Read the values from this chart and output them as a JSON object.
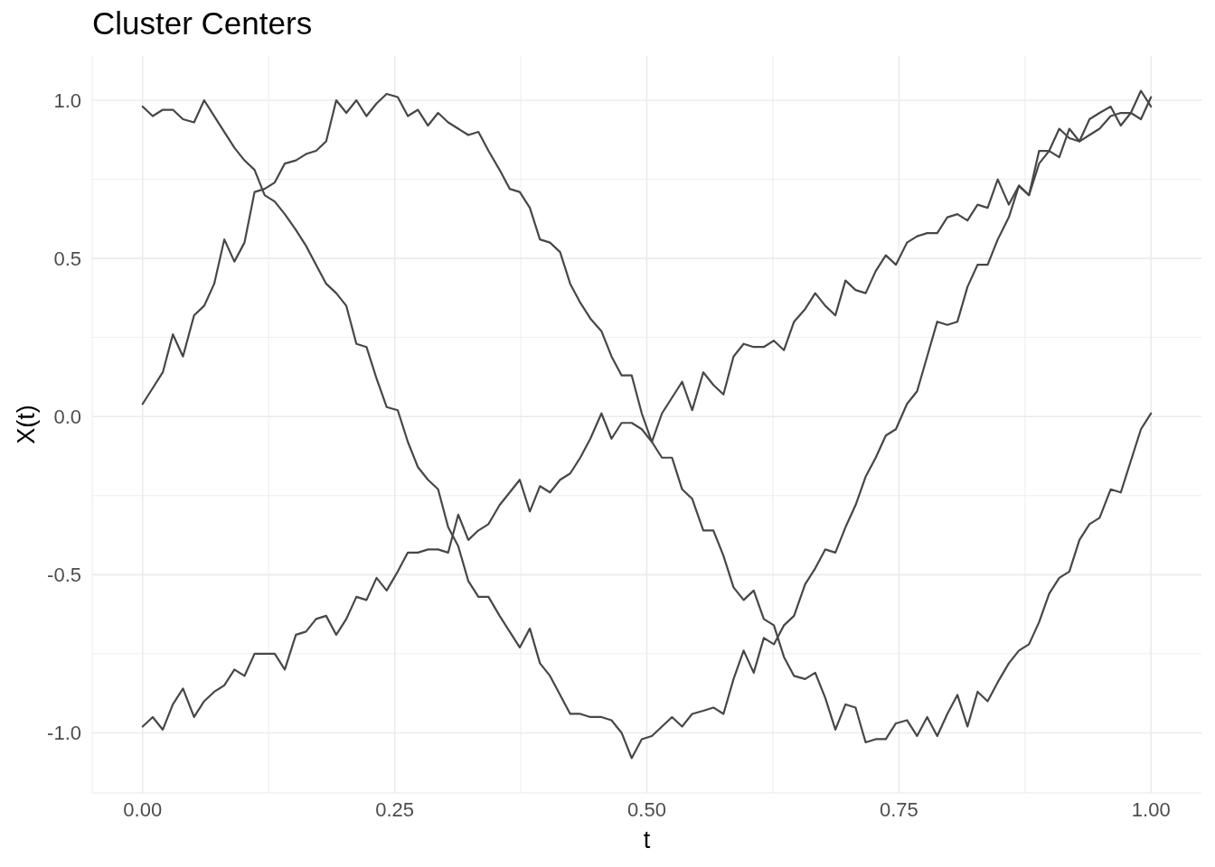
{
  "chart_data": {
    "type": "line",
    "title": "Cluster Centers",
    "xlabel": "t",
    "ylabel": "X(t)",
    "x": [
      0,
      0.01,
      0.02,
      0.03,
      0.04,
      0.051,
      0.061,
      0.071,
      0.081,
      0.091,
      0.101,
      0.111,
      0.121,
      0.131,
      0.141,
      0.152,
      0.162,
      0.172,
      0.182,
      0.192,
      0.202,
      0.212,
      0.222,
      0.232,
      0.242,
      0.253,
      0.263,
      0.273,
      0.283,
      0.293,
      0.303,
      0.313,
      0.323,
      0.333,
      0.343,
      0.354,
      0.364,
      0.374,
      0.384,
      0.394,
      0.404,
      0.414,
      0.424,
      0.434,
      0.444,
      0.455,
      0.465,
      0.475,
      0.485,
      0.495,
      0.505,
      0.515,
      0.525,
      0.535,
      0.545,
      0.556,
      0.566,
      0.576,
      0.586,
      0.596,
      0.606,
      0.616,
      0.626,
      0.636,
      0.646,
      0.657,
      0.667,
      0.677,
      0.687,
      0.697,
      0.707,
      0.717,
      0.727,
      0.737,
      0.747,
      0.758,
      0.768,
      0.778,
      0.788,
      0.798,
      0.808,
      0.818,
      0.828,
      0.838,
      0.848,
      0.859,
      0.869,
      0.879,
      0.889,
      0.899,
      0.909,
      0.919,
      0.929,
      0.939,
      0.949,
      0.96,
      0.97,
      0.98,
      0.99,
      1
    ],
    "series": [
      {
        "color": "#474747",
        "values": [
          0.98,
          0.95,
          0.97,
          0.97,
          0.94,
          0.93,
          1.0,
          0.95,
          0.9,
          0.85,
          0.81,
          0.78,
          0.7,
          0.68,
          0.64,
          0.59,
          0.54,
          0.48,
          0.42,
          0.39,
          0.35,
          0.23,
          0.22,
          0.12,
          0.03,
          0.02,
          -0.08,
          -0.16,
          -0.2,
          -0.23,
          -0.35,
          -0.41,
          -0.52,
          -0.57,
          -0.57,
          -0.63,
          -0.68,
          -0.73,
          -0.67,
          -0.78,
          -0.82,
          -0.88,
          -0.94,
          -0.94,
          -0.95,
          -0.95,
          -0.96,
          -1.0,
          -1.08,
          -1.02,
          -1.01,
          -0.98,
          -0.95,
          -0.98,
          -0.94,
          -0.93,
          -0.92,
          -0.94,
          -0.83,
          -0.74,
          -0.81,
          -0.7,
          -0.72,
          -0.66,
          -0.63,
          -0.53,
          -0.48,
          -0.42,
          -0.43,
          -0.35,
          -0.28,
          -0.19,
          -0.13,
          -0.06,
          -0.04,
          0.04,
          0.08,
          0.19,
          0.3,
          0.29,
          0.3,
          0.41,
          0.48,
          0.48,
          0.56,
          0.63,
          0.73,
          0.7,
          0.8,
          0.84,
          0.91,
          0.88,
          0.87,
          0.89,
          0.91,
          0.95,
          0.96,
          0.96,
          0.94,
          1.01
        ]
      },
      {
        "color": "#474747",
        "values": [
          0.04,
          0.09,
          0.14,
          0.26,
          0.19,
          0.32,
          0.35,
          0.42,
          0.56,
          0.49,
          0.55,
          0.71,
          0.72,
          0.74,
          0.8,
          0.81,
          0.83,
          0.84,
          0.87,
          1.0,
          0.96,
          1.0,
          0.95,
          0.99,
          1.02,
          1.01,
          0.95,
          0.97,
          0.92,
          0.96,
          0.93,
          0.91,
          0.89,
          0.9,
          0.84,
          0.78,
          0.72,
          0.71,
          0.66,
          0.56,
          0.55,
          0.52,
          0.42,
          0.36,
          0.31,
          0.27,
          0.19,
          0.13,
          0.13,
          0.01,
          -0.08,
          -0.13,
          -0.13,
          -0.23,
          -0.26,
          -0.36,
          -0.36,
          -0.44,
          -0.54,
          -0.58,
          -0.55,
          -0.64,
          -0.66,
          -0.76,
          -0.82,
          -0.83,
          -0.81,
          -0.89,
          -0.99,
          -0.91,
          -0.92,
          -1.03,
          -1.02,
          -1.02,
          -0.97,
          -0.96,
          -1.01,
          -0.95,
          -1.01,
          -0.94,
          -0.88,
          -0.98,
          -0.87,
          -0.9,
          -0.84,
          -0.78,
          -0.74,
          -0.72,
          -0.65,
          -0.56,
          -0.51,
          -0.49,
          -0.39,
          -0.34,
          -0.32,
          -0.23,
          -0.24,
          -0.14,
          -0.04,
          0.01
        ]
      },
      {
        "color": "#474747",
        "values": [
          -0.98,
          -0.95,
          -0.99,
          -0.91,
          -0.86,
          -0.95,
          -0.9,
          -0.87,
          -0.85,
          -0.8,
          -0.82,
          -0.75,
          -0.75,
          -0.75,
          -0.8,
          -0.69,
          -0.68,
          -0.64,
          -0.63,
          -0.69,
          -0.64,
          -0.57,
          -0.58,
          -0.51,
          -0.55,
          -0.49,
          -0.43,
          -0.43,
          -0.42,
          -0.42,
          -0.43,
          -0.31,
          -0.39,
          -0.36,
          -0.34,
          -0.28,
          -0.24,
          -0.2,
          -0.3,
          -0.22,
          -0.24,
          -0.2,
          -0.18,
          -0.13,
          -0.07,
          0.01,
          -0.07,
          -0.02,
          -0.02,
          -0.04,
          -0.08,
          0.01,
          0.06,
          0.11,
          0.02,
          0.14,
          0.1,
          0.07,
          0.19,
          0.23,
          0.22,
          0.22,
          0.24,
          0.21,
          0.3,
          0.34,
          0.39,
          0.35,
          0.32,
          0.43,
          0.4,
          0.39,
          0.46,
          0.51,
          0.48,
          0.55,
          0.57,
          0.58,
          0.58,
          0.63,
          0.64,
          0.62,
          0.67,
          0.66,
          0.75,
          0.67,
          0.73,
          0.7,
          0.84,
          0.84,
          0.82,
          0.91,
          0.87,
          0.94,
          0.96,
          0.98,
          0.92,
          0.96,
          1.03,
          0.98
        ]
      }
    ],
    "xlim": [
      -0.05,
      1.05
    ],
    "ylim": [
      -1.19,
      1.14
    ],
    "xticks": [
      {
        "value": 0,
        "label": "0.00"
      },
      {
        "value": 0.125,
        "label": null
      },
      {
        "value": 0.25,
        "label": "0.25"
      },
      {
        "value": 0.375,
        "label": null
      },
      {
        "value": 0.5,
        "label": "0.50"
      },
      {
        "value": 0.625,
        "label": null
      },
      {
        "value": 0.75,
        "label": "0.75"
      },
      {
        "value": 0.875,
        "label": null
      },
      {
        "value": 1,
        "label": "1.00"
      }
    ],
    "yticks": [
      {
        "value": -1,
        "label": "-1.0"
      },
      {
        "value": -0.75,
        "label": null
      },
      {
        "value": -0.5,
        "label": "-0.5"
      },
      {
        "value": -0.25,
        "label": null
      },
      {
        "value": 0,
        "label": "0.0"
      },
      {
        "value": 0.25,
        "label": null
      },
      {
        "value": 0.5,
        "label": "0.5"
      },
      {
        "value": 0.75,
        "label": null
      },
      {
        "value": 1,
        "label": "1.0"
      }
    ],
    "grid": true
  }
}
